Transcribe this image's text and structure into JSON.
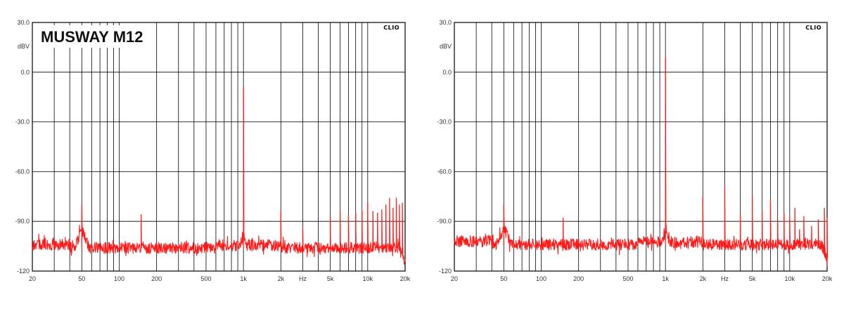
{
  "colors": {
    "trace": "#ff1a1a",
    "grid": "#000000",
    "background": "#ffffff"
  },
  "chart_data": [
    {
      "type": "line",
      "title": "MUSWAY M12",
      "brand": "CLIO",
      "ylabel": "dBV",
      "xlabel_unit": "Hz",
      "x_scale": "log",
      "xlim": [
        20,
        20000
      ],
      "ylim": [
        -120,
        30
      ],
      "y_ticks": [
        30,
        0,
        -30,
        -60,
        -90,
        -120
      ],
      "y_tick_labels": [
        "30.0",
        "0.0",
        "-30.0",
        "-60.0",
        "-90.0",
        "-120"
      ],
      "x_tick_values": [
        20,
        50,
        100,
        200,
        500,
        1000,
        2000,
        5000,
        10000,
        20000
      ],
      "x_tick_labels": [
        "20",
        "50",
        "100",
        "200",
        "500",
        "1k",
        "2k",
        "5k",
        "10k",
        "20k"
      ],
      "grid": true,
      "noise_floor_dbv": -106,
      "peaks": [
        {
          "x": 50,
          "y": -80
        },
        {
          "x": 150,
          "y": -86
        },
        {
          "x": 1000,
          "y": -9
        },
        {
          "x": 2000,
          "y": -84
        },
        {
          "x": 3000,
          "y": -93
        },
        {
          "x": 5000,
          "y": -87
        },
        {
          "x": 6000,
          "y": -84
        },
        {
          "x": 7000,
          "y": -86
        },
        {
          "x": 8000,
          "y": -85
        },
        {
          "x": 9000,
          "y": -84
        },
        {
          "x": 10000,
          "y": -79
        },
        {
          "x": 11000,
          "y": -84
        },
        {
          "x": 12000,
          "y": -85
        },
        {
          "x": 13000,
          "y": -83
        },
        {
          "x": 14000,
          "y": -80
        },
        {
          "x": 15000,
          "y": -76
        },
        {
          "x": 16000,
          "y": -82
        },
        {
          "x": 17000,
          "y": -76
        },
        {
          "x": 18000,
          "y": -80
        },
        {
          "x": 19000,
          "y": -79
        }
      ]
    },
    {
      "type": "line",
      "title": "",
      "brand": "CLIO",
      "ylabel": "dBV",
      "xlabel_unit": "Hz",
      "x_scale": "log",
      "xlim": [
        20,
        20000
      ],
      "ylim": [
        -120,
        30
      ],
      "y_ticks": [
        30,
        0,
        -30,
        -60,
        -90,
        -120
      ],
      "y_tick_labels": [
        "30.0",
        "0.0",
        "-30.0",
        "-60.0",
        "-90.0",
        "-120"
      ],
      "x_tick_values": [
        20,
        50,
        100,
        200,
        500,
        1000,
        2000,
        5000,
        10000,
        20000
      ],
      "x_tick_labels": [
        "20",
        "50",
        "100",
        "200",
        "500",
        "1k",
        "2k",
        "5k",
        "10k",
        "20k"
      ],
      "grid": true,
      "noise_floor_dbv": -104,
      "peaks": [
        {
          "x": 50,
          "y": -80
        },
        {
          "x": 150,
          "y": -88
        },
        {
          "x": 1000,
          "y": 9
        },
        {
          "x": 2000,
          "y": -75
        },
        {
          "x": 3000,
          "y": -69
        },
        {
          "x": 4000,
          "y": -86
        },
        {
          "x": 5000,
          "y": -75
        },
        {
          "x": 6000,
          "y": -84
        },
        {
          "x": 7000,
          "y": -77
        },
        {
          "x": 8000,
          "y": -90
        },
        {
          "x": 9000,
          "y": -85
        },
        {
          "x": 10000,
          "y": -88
        },
        {
          "x": 11000,
          "y": -82
        },
        {
          "x": 12000,
          "y": -95
        },
        {
          "x": 13000,
          "y": -87
        },
        {
          "x": 15000,
          "y": -93
        },
        {
          "x": 17000,
          "y": -89
        },
        {
          "x": 19000,
          "y": -82
        },
        {
          "x": 20000,
          "y": -88
        }
      ]
    }
  ]
}
